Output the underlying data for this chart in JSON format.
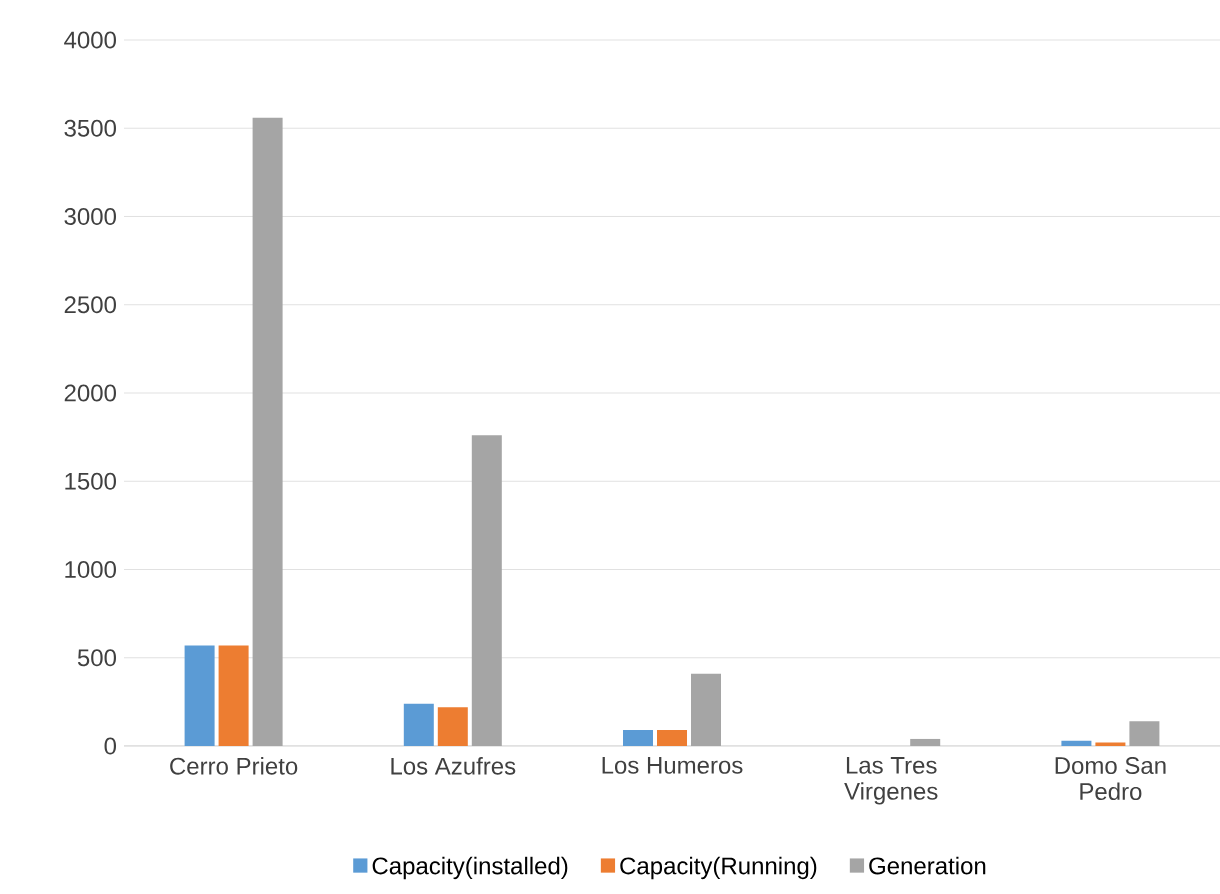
{
  "chart_data": {
    "type": "bar",
    "categories": [
      "Cerro Prieto",
      "Los Azufres",
      "Los Humeros",
      "Las Tres Virgenes",
      "Domo San Pedro"
    ],
    "series": [
      {
        "name": "Capacity(installed)",
        "color": "#5b9bd5",
        "values": [
          570,
          240,
          90,
          0,
          30
        ]
      },
      {
        "name": "Capacity(Running)",
        "color": "#ed7d31",
        "values": [
          570,
          220,
          90,
          0,
          20
        ]
      },
      {
        "name": "Generation",
        "color": "#a5a5a5",
        "values": [
          3560,
          1760,
          410,
          40,
          140
        ]
      }
    ],
    "ylim": [
      0,
      4000
    ],
    "yticks": [
      0,
      500,
      1000,
      1500,
      2000,
      2500,
      3000,
      3500,
      4000
    ],
    "grid": "y",
    "legend": "bottom"
  }
}
